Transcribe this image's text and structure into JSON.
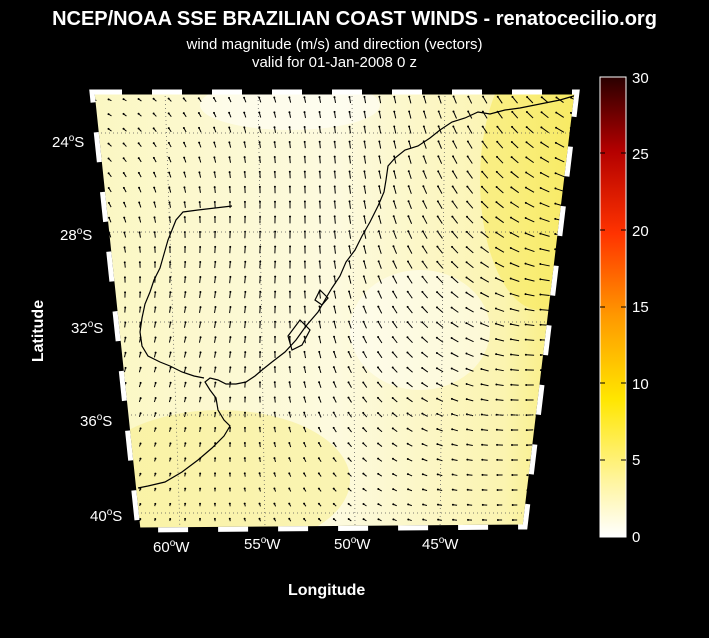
{
  "header": {
    "title": "NCEP/NOAA SSE BRAZILIAN COAST WINDS - renatocecilio.org",
    "subtitle_1": "wind magnitude (m/s) and direction (vectors)",
    "subtitle_2": "valid for 01-Jan-2008  0 z"
  },
  "axes": {
    "xlabel": "Longitude",
    "ylabel": "Latitude",
    "lon_ticks": [
      {
        "deg": "60",
        "hem": "W"
      },
      {
        "deg": "55",
        "hem": "W"
      },
      {
        "deg": "50",
        "hem": "W"
      },
      {
        "deg": "45",
        "hem": "W"
      }
    ],
    "lat_ticks": [
      {
        "deg": "24",
        "hem": "S"
      },
      {
        "deg": "28",
        "hem": "S"
      },
      {
        "deg": "32",
        "hem": "S"
      },
      {
        "deg": "36",
        "hem": "S"
      },
      {
        "deg": "40",
        "hem": "S"
      }
    ],
    "degree_mark": "o"
  },
  "colorbar": {
    "label_values": [
      "30",
      "25",
      "20",
      "15",
      "10",
      "5",
      "0"
    ],
    "range": [
      0,
      30
    ],
    "colors": [
      "#ffffff",
      "#fff5a0",
      "#ffe600",
      "#ff9900",
      "#ff3300",
      "#b30000",
      "#330000"
    ]
  },
  "map": {
    "background_color": "#fbf8cf",
    "coast_color": "#000000",
    "arrow_color": "#000000"
  }
}
